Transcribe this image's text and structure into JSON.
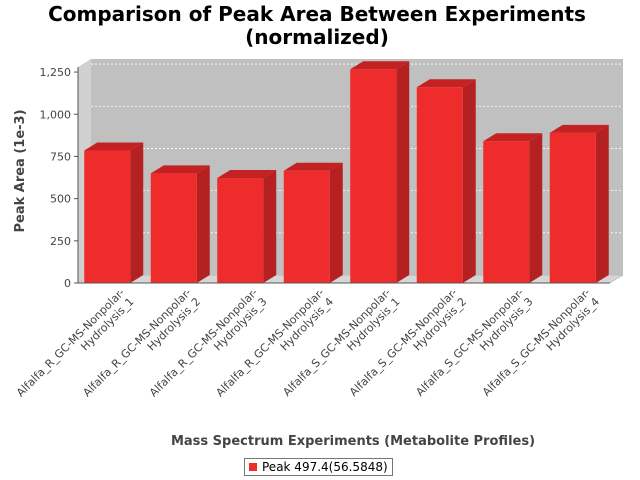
{
  "chart_data": {
    "type": "bar",
    "title": [
      "Comparison of Peak Area Between Experiments",
      "(normalized)"
    ],
    "xlabel": "Mass Spectrum Experiments (Metabolite Profiles)",
    "ylabel": "Peak Area (1e-3)",
    "ylim": [
      0,
      1250
    ],
    "yticks": [
      0,
      250,
      500,
      750,
      1000,
      1250
    ],
    "ytick_labels": [
      "0",
      "250",
      "500",
      "750",
      "1,000",
      "1,250"
    ],
    "grid": true,
    "legend_position": "bottom",
    "categories": [
      "Alfalfa_R_GC-MS-Nonpolar-Hydrolysis_1",
      "Alfalfa_R_GC-MS-Nonpolar-Hydrolysis_2",
      "Alfalfa_R_GC-MS-Nonpolar-Hydrolysis_3",
      "Alfalfa_R_GC-MS-Nonpolar-Hydrolysis_4",
      "Alfalfa_S_GC-MS-Nonpolar-Hydrolysis_1",
      "Alfalfa_S_GC-MS-Nonpolar-Hydrolysis_2",
      "Alfalfa_S_GC-MS-Nonpolar-Hydrolysis_3",
      "Alfalfa_S_GC-MS-Nonpolar-Hydrolysis_4"
    ],
    "category_lines": [
      [
        "Alfalfa_R_GC-MS-Nonpolar-",
        "Hydrolysis_1"
      ],
      [
        "Alfalfa_R_GC-MS-Nonpolar-",
        "Hydrolysis_2"
      ],
      [
        "Alfalfa_R_GC-MS-Nonpolar-",
        "Hydrolysis_3"
      ],
      [
        "Alfalfa_R_GC-MS-Nonpolar-",
        "Hydrolysis_4"
      ],
      [
        "Alfalfa_S_GC-MS-Nonpolar-",
        "Hydrolysis_1"
      ],
      [
        "Alfalfa_S_GC-MS-Nonpolar-",
        "Hydrolysis_2"
      ],
      [
        "Alfalfa_S_GC-MS-Nonpolar-",
        "Hydrolysis_3"
      ],
      [
        "Alfalfa_S_GC-MS-Nonpolar-",
        "Hydrolysis_4"
      ]
    ],
    "series": [
      {
        "name": "Peak 497.4(56.5848)",
        "values": [
          785,
          650,
          622,
          665,
          1267,
          1160,
          840,
          890
        ]
      }
    ]
  },
  "colors": {
    "bar_front": "#ee2c2c",
    "bar_top": "#c42222",
    "bar_side": "#b52020",
    "plot_back": "#c0c0c0",
    "plot_floor": "#d6d6d6"
  }
}
